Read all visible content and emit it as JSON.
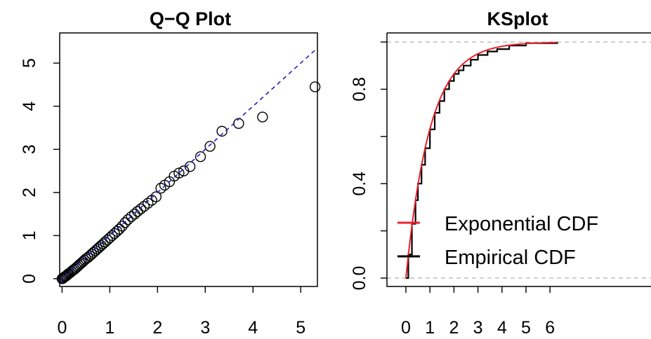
{
  "chart_data": [
    {
      "type": "scatter",
      "title": "Q−Q Plot",
      "xlabel": "",
      "ylabel": "",
      "xlim": [
        -0.05,
        5.35
      ],
      "ylim": [
        -0.18,
        5.7
      ],
      "x_ticks": [
        0,
        1,
        2,
        3,
        4,
        5
      ],
      "y_ticks": [
        0,
        1,
        2,
        3,
        4,
        5
      ],
      "reference_line": {
        "slope": 1,
        "intercept": 0,
        "style": "dashed",
        "color": "#1f1fbf"
      },
      "marker": "open-circle",
      "grid": false,
      "points": [
        [
          0.0,
          0.0
        ],
        [
          0.02,
          0.01
        ],
        [
          0.04,
          0.03
        ],
        [
          0.06,
          0.05
        ],
        [
          0.08,
          0.06
        ],
        [
          0.1,
          0.08
        ],
        [
          0.12,
          0.1
        ],
        [
          0.14,
          0.12
        ],
        [
          0.17,
          0.14
        ],
        [
          0.2,
          0.17
        ],
        [
          0.23,
          0.2
        ],
        [
          0.26,
          0.22
        ],
        [
          0.29,
          0.25
        ],
        [
          0.32,
          0.28
        ],
        [
          0.35,
          0.31
        ],
        [
          0.38,
          0.34
        ],
        [
          0.41,
          0.37
        ],
        [
          0.44,
          0.4
        ],
        [
          0.47,
          0.43
        ],
        [
          0.5,
          0.46
        ],
        [
          0.54,
          0.49
        ],
        [
          0.58,
          0.53
        ],
        [
          0.62,
          0.57
        ],
        [
          0.66,
          0.61
        ],
        [
          0.7,
          0.65
        ],
        [
          0.74,
          0.69
        ],
        [
          0.78,
          0.73
        ],
        [
          0.82,
          0.77
        ],
        [
          0.86,
          0.81
        ],
        [
          0.9,
          0.85
        ],
        [
          0.95,
          0.9
        ],
        [
          1.0,
          0.95
        ],
        [
          1.05,
          1.0
        ],
        [
          1.1,
          1.05
        ],
        [
          1.15,
          1.1
        ],
        [
          1.2,
          1.15
        ],
        [
          1.26,
          1.22
        ],
        [
          1.32,
          1.3
        ],
        [
          1.38,
          1.37
        ],
        [
          1.45,
          1.44
        ],
        [
          1.52,
          1.5
        ],
        [
          1.58,
          1.56
        ],
        [
          1.65,
          1.62
        ],
        [
          1.72,
          1.68
        ],
        [
          1.8,
          1.75
        ],
        [
          1.88,
          1.82
        ],
        [
          1.97,
          1.9
        ],
        [
          2.07,
          2.1
        ],
        [
          2.15,
          2.17
        ],
        [
          2.25,
          2.25
        ],
        [
          2.35,
          2.38
        ],
        [
          2.45,
          2.45
        ],
        [
          2.55,
          2.5
        ],
        [
          2.68,
          2.6
        ],
        [
          2.9,
          2.83
        ],
        [
          3.1,
          3.07
        ],
        [
          3.35,
          3.42
        ],
        [
          3.7,
          3.6
        ],
        [
          4.2,
          3.75
        ],
        [
          5.3,
          4.45
        ]
      ]
    },
    {
      "type": "line",
      "title": "KSplot",
      "xlabel": "",
      "ylabel": "",
      "xlim": [
        -0.2,
        6.3
      ],
      "ylim": [
        -0.005,
        1.01
      ],
      "x_ticks": [
        0,
        1,
        2,
        3,
        4,
        5,
        6
      ],
      "y_ticks": [
        0.0,
        0.4,
        0.8
      ],
      "reference_lines": [
        {
          "y": 0.0,
          "style": "dashed",
          "color": "#bdbdbd"
        },
        {
          "y": 1.0,
          "style": "dashed",
          "color": "#bdbdbd"
        }
      ],
      "grid": false,
      "legend_position": "center-right",
      "series": [
        {
          "name": "Exponential CDF",
          "color": "#e8212d",
          "rate": 1,
          "x": [
            0,
            0.25,
            0.5,
            0.75,
            1,
            1.25,
            1.5,
            1.75,
            2,
            2.5,
            3,
            3.5,
            4,
            5,
            6.3
          ],
          "y": [
            0,
            0.221,
            0.393,
            0.528,
            0.632,
            0.713,
            0.777,
            0.826,
            0.865,
            0.918,
            0.95,
            0.97,
            0.982,
            0.993,
            0.998
          ]
        },
        {
          "name": "Empirical CDF",
          "color": "#000000",
          "x": [
            0,
            0.1,
            0.25,
            0.4,
            0.5,
            0.65,
            0.8,
            1.0,
            1.2,
            1.4,
            1.6,
            1.8,
            2.0,
            2.2,
            2.4,
            2.7,
            3.0,
            3.4,
            3.8,
            4.3,
            5.0,
            6.3
          ],
          "y": [
            0,
            0.1,
            0.23,
            0.33,
            0.4,
            0.48,
            0.55,
            0.63,
            0.7,
            0.75,
            0.8,
            0.835,
            0.865,
            0.88,
            0.9,
            0.925,
            0.945,
            0.96,
            0.97,
            0.985,
            0.995,
            1.0
          ]
        }
      ]
    }
  ]
}
